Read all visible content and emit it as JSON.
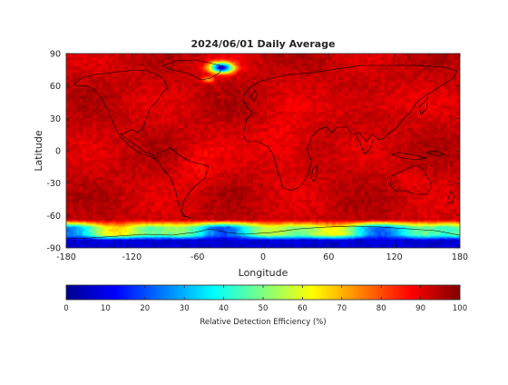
{
  "chart_data": {
    "type": "heatmap",
    "title": "2024/06/01 Daily Average",
    "xlabel": "Longitude",
    "ylabel": "Latitude",
    "xlim": [
      -180,
      180
    ],
    "ylim": [
      -90,
      90
    ],
    "xticks": [
      -180,
      -120,
      -60,
      0,
      60,
      120,
      180
    ],
    "yticks": [
      90,
      60,
      30,
      0,
      -30,
      -60,
      -90
    ],
    "colormap": "jet",
    "colorbar": {
      "label": "Relative Detection Efficiency (%)",
      "range": [
        0,
        100
      ],
      "ticks": [
        0,
        10,
        20,
        30,
        40,
        50,
        60,
        70,
        80,
        90,
        100
      ],
      "orientation": "horizontal",
      "placement": "bottom"
    },
    "field": {
      "description_values": {
        "background_typical": 93,
        "greenland_min": 10,
        "antarctic_band_typical": 45,
        "antarctic_min": 8,
        "africa_south_america_typical": 86
      }
    },
    "coastlines": true
  }
}
